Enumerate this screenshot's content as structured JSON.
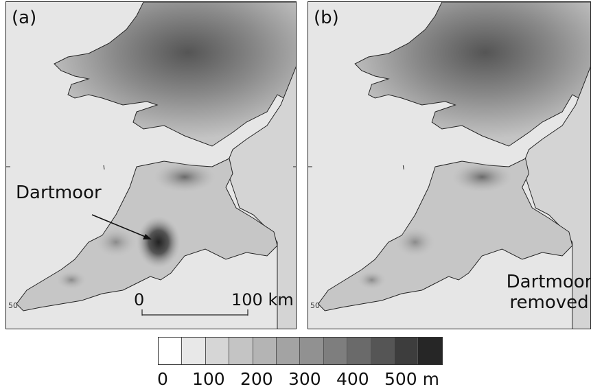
{
  "panels": [
    {
      "label": "(a)",
      "annotation": "Dartmoor",
      "lat_tick": "50",
      "scale_start": "0",
      "scale_end": "100 km"
    },
    {
      "label": "(b)",
      "annotation_line1": "Dartmoor",
      "annotation_line2": "removed",
      "lat_tick": "50"
    }
  ],
  "legend": {
    "labels": [
      "0",
      "100",
      "200",
      "300",
      "400",
      "500 m"
    ],
    "colors": [
      "#ffffff",
      "#e8e8e8",
      "#d6d6d6",
      "#c4c4c4",
      "#b4b4b4",
      "#a3a3a3",
      "#919191",
      "#7e7e7e",
      "#6a6a6a",
      "#555555",
      "#3d3d3d",
      "#262626"
    ]
  },
  "colors": {
    "sea": "#e6e6e6",
    "land_low": "#c8c8c8",
    "coast": "#222222"
  }
}
